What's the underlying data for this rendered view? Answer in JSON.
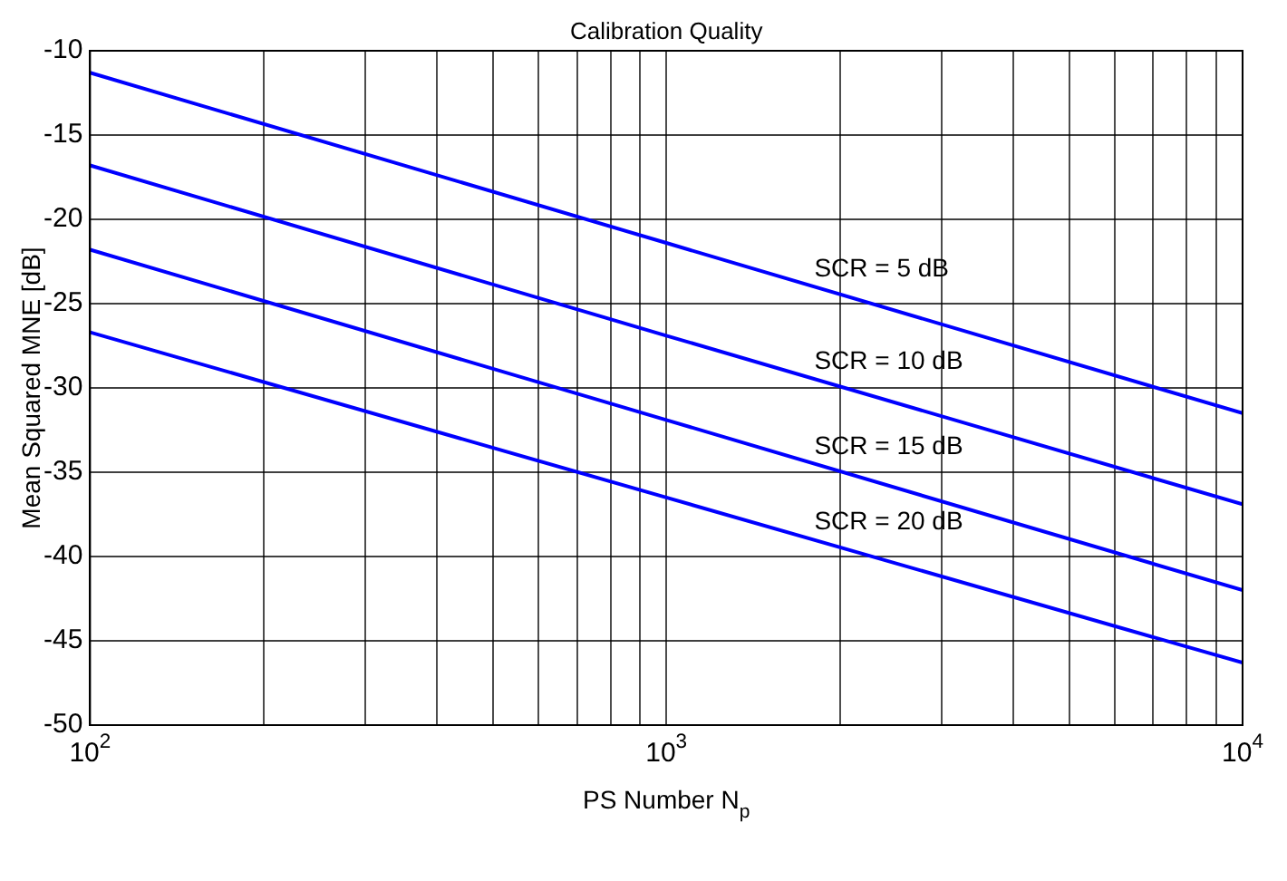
{
  "chart_data": {
    "type": "line",
    "title": "Calibration Quality",
    "xlabel": "PS Number N$_{p}$",
    "ylabel": "Mean Squared MNE [dB]",
    "log": "x",
    "grid": true,
    "legend": false,
    "marker": "none",
    "line_style": "solid",
    "x": [
      100,
      1000,
      10000
    ],
    "series": [
      {
        "name": "SCR = 5 dB",
        "color": "#0000ff",
        "values": [
          -11.3,
          -21.4,
          -31.5
        ]
      },
      {
        "name": "SCR = 10 dB",
        "color": "#0000ff",
        "values": [
          -16.8,
          -26.9,
          -36.9
        ]
      },
      {
        "name": "SCR = 15 dB",
        "color": "#0000ff",
        "values": [
          -21.8,
          -31.9,
          -42
        ]
      },
      {
        "name": "SCR = 20 dB",
        "color": "#0000ff",
        "values": [
          -26.7,
          -36.5,
          -46.3
        ]
      }
    ],
    "xlim": [
      100,
      10000
    ],
    "xticks": [
      {
        "value": 100,
        "label": "10$^{2}$"
      },
      {
        "value": 200,
        "label": null
      },
      {
        "value": 300,
        "label": null
      },
      {
        "value": 400,
        "label": null
      },
      {
        "value": 500,
        "label": null
      },
      {
        "value": 600,
        "label": null
      },
      {
        "value": 700,
        "label": null
      },
      {
        "value": 800,
        "label": null
      },
      {
        "value": 900,
        "label": null
      },
      {
        "value": 1000,
        "label": "10$^{3}$"
      },
      {
        "value": 2000,
        "label": null
      },
      {
        "value": 3000,
        "label": null
      },
      {
        "value": 4000,
        "label": null
      },
      {
        "value": 5000,
        "label": null
      },
      {
        "value": 6000,
        "label": null
      },
      {
        "value": 7000,
        "label": null
      },
      {
        "value": 8000,
        "label": null
      },
      {
        "value": 9000,
        "label": null
      },
      {
        "value": 10000,
        "label": "10$^{4}$"
      }
    ],
    "ylim": [
      -50,
      -10
    ],
    "yticks": [
      -50,
      -45,
      -40,
      -35,
      -30,
      -25,
      -20,
      -15,
      -10
    ]
  }
}
